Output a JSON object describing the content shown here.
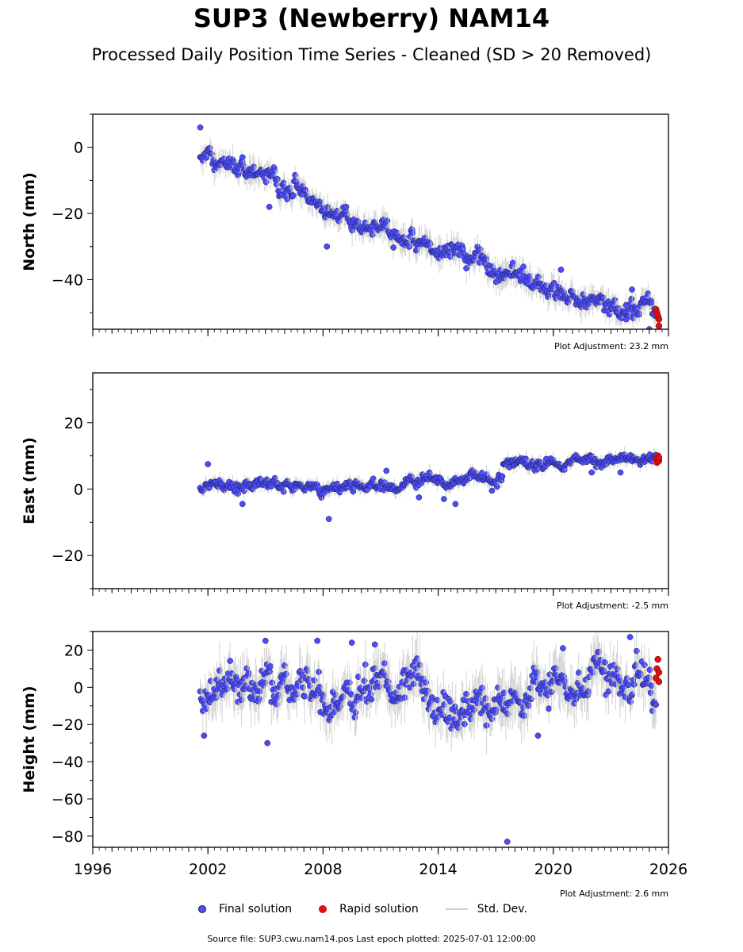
{
  "title": "SUP3 (Newberry) NAM14",
  "subtitle": "Processed Daily Position Time Series - Cleaned (SD > 20 Removed)",
  "colors": {
    "final": "#4b4bff",
    "rapid": "#e01010",
    "std": "#c8c8c8"
  },
  "chart_data": [
    {
      "type": "scatter",
      "ylabel": "North (mm)",
      "adjustment": "Plot Adjustment: 23.2 mm",
      "xlim": [
        1996,
        2026
      ],
      "ylim": [
        -55,
        10
      ],
      "yticks": [
        0,
        -20,
        -40
      ],
      "ytick_labels": [
        "0",
        "−20",
        "−40"
      ],
      "trend": {
        "points": [
          [
            2001.6,
            -2
          ],
          [
            2005.9,
            -11
          ],
          [
            2009.5,
            -23
          ],
          [
            2013.0,
            -29
          ],
          [
            2016.5,
            -36
          ],
          [
            2020.0,
            -44
          ],
          [
            2021.2,
            -46
          ],
          [
            2023.2,
            -47
          ],
          [
            2025.5,
            -51
          ]
        ],
        "noise": 2.2
      },
      "outliers": [
        [
          2001.6,
          6
        ],
        [
          2003.8,
          -3
        ],
        [
          2005.2,
          -18
        ],
        [
          2008.2,
          -30
        ],
        [
          2009.2,
          -18
        ],
        [
          2020.4,
          -37
        ],
        [
          2023.8,
          -52
        ],
        [
          2024.1,
          -43
        ],
        [
          2025.0,
          -55
        ]
      ],
      "rapid": [
        [
          2025.35,
          -49
        ],
        [
          2025.4,
          -50
        ],
        [
          2025.45,
          -51
        ],
        [
          2025.5,
          -52
        ],
        [
          2025.5,
          -54
        ]
      ]
    },
    {
      "type": "scatter",
      "ylabel": "East (mm)",
      "adjustment": "Plot Adjustment: -2.5 mm",
      "xlim": [
        1996,
        2026
      ],
      "ylim": [
        -30,
        35
      ],
      "yticks": [
        20,
        0,
        -20
      ],
      "ytick_labels": [
        "20",
        "0",
        "−20"
      ],
      "trend": {
        "points": [
          [
            2001.6,
            1.5
          ],
          [
            2004.0,
            1.5
          ],
          [
            2008.0,
            0.5
          ],
          [
            2012.0,
            1.0
          ],
          [
            2014.0,
            2.5
          ],
          [
            2017.3,
            3.0
          ],
          [
            2017.4,
            8.0
          ],
          [
            2020.0,
            7.5
          ],
          [
            2025.5,
            9.5
          ]
        ],
        "noise": 1.2
      },
      "outliers": [
        [
          2002.0,
          7.5
        ],
        [
          2003.8,
          -4.5
        ],
        [
          2008.3,
          -9
        ],
        [
          2011.3,
          5.5
        ],
        [
          2013.0,
          -2.5
        ],
        [
          2014.3,
          -3
        ],
        [
          2014.9,
          -4.5
        ],
        [
          2016.8,
          -0.5
        ],
        [
          2022.0,
          5
        ],
        [
          2023.5,
          5
        ]
      ],
      "rapid": [
        [
          2025.35,
          9
        ],
        [
          2025.4,
          8
        ],
        [
          2025.45,
          10
        ],
        [
          2025.5,
          8.5
        ],
        [
          2025.5,
          9.5
        ]
      ]
    },
    {
      "type": "scatter",
      "ylabel": "Height (mm)",
      "adjustment": "Plot Adjustment: 2.6 mm",
      "xlim": [
        1996,
        2026
      ],
      "ylim": [
        -86,
        30
      ],
      "xticks": [
        1996,
        2002,
        2008,
        2014,
        2020,
        2026
      ],
      "xtick_labels": [
        "1996",
        "2002",
        "2008",
        "2014",
        "2020",
        "2026"
      ],
      "yticks": [
        20,
        0,
        -20,
        -40,
        -60,
        -80
      ],
      "ytick_labels": [
        "20",
        "0",
        "−20",
        "−40",
        "−60",
        "−80"
      ],
      "trend": {
        "points": [
          [
            2001.6,
            -5
          ],
          [
            2004.0,
            -3
          ],
          [
            2007.0,
            0
          ],
          [
            2009.0,
            -4
          ],
          [
            2011.0,
            1
          ],
          [
            2012.8,
            5
          ],
          [
            2014.0,
            -6
          ],
          [
            2016.0,
            -10
          ],
          [
            2018.0,
            -8
          ],
          [
            2019.5,
            -3
          ],
          [
            2021.0,
            0
          ],
          [
            2022.5,
            5
          ],
          [
            2025.5,
            7
          ]
        ],
        "noise": 7.5
      },
      "outliers": [
        [
          2005.0,
          25
        ],
        [
          2005.1,
          -30
        ],
        [
          2007.7,
          25
        ],
        [
          2009.5,
          24
        ],
        [
          2010.7,
          23
        ],
        [
          2017.6,
          -83
        ],
        [
          2019.2,
          -26
        ],
        [
          2020.5,
          21
        ],
        [
          2024.0,
          27
        ],
        [
          2001.8,
          -26
        ]
      ],
      "rapid": [
        [
          2025.35,
          5
        ],
        [
          2025.4,
          10
        ],
        [
          2025.45,
          15
        ],
        [
          2025.5,
          3
        ],
        [
          2025.5,
          8
        ]
      ]
    }
  ],
  "legend": {
    "final": "Final solution",
    "rapid": "Rapid solution",
    "std": "Std. Dev."
  },
  "footer": "Source file: SUP3.cwu.nam14.pos  Last epoch plotted: 2025-07-01 12:00:00"
}
